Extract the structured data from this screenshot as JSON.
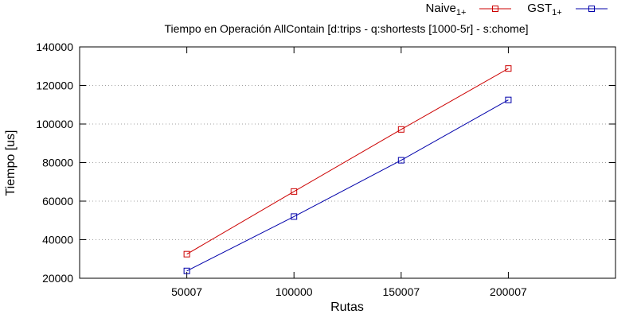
{
  "chart_data": {
    "type": "line",
    "title": "Tiempo en Operación AllContain [d:trips - q:shortests [1000-5r] - s:chome]",
    "xlabel": "Rutas",
    "ylabel": "Tiempo [us]",
    "x": [
      50007,
      100000,
      150007,
      200007
    ],
    "x_tick_labels": [
      "50007",
      "100000",
      "150007",
      "200007"
    ],
    "xlim": [
      0,
      250000
    ],
    "ylim": [
      20000,
      140000
    ],
    "y_ticks": [
      20000,
      40000,
      60000,
      80000,
      100000,
      120000,
      140000
    ],
    "y_tick_labels": [
      "20000",
      "40000",
      "60000",
      "80000",
      "100000",
      "120000",
      "140000"
    ],
    "grid": "horizontal-dotted",
    "legend_position": "top-right-outside",
    "series": [
      {
        "name": "Naive",
        "name_sub": "1+",
        "color": "#cc0000",
        "marker": "square",
        "values": [
          32500,
          65000,
          97200,
          128800
        ]
      },
      {
        "name": "GST",
        "name_sub": "1+",
        "color": "#0000aa",
        "marker": "square",
        "values": [
          23800,
          52000,
          81200,
          112500
        ]
      }
    ]
  }
}
